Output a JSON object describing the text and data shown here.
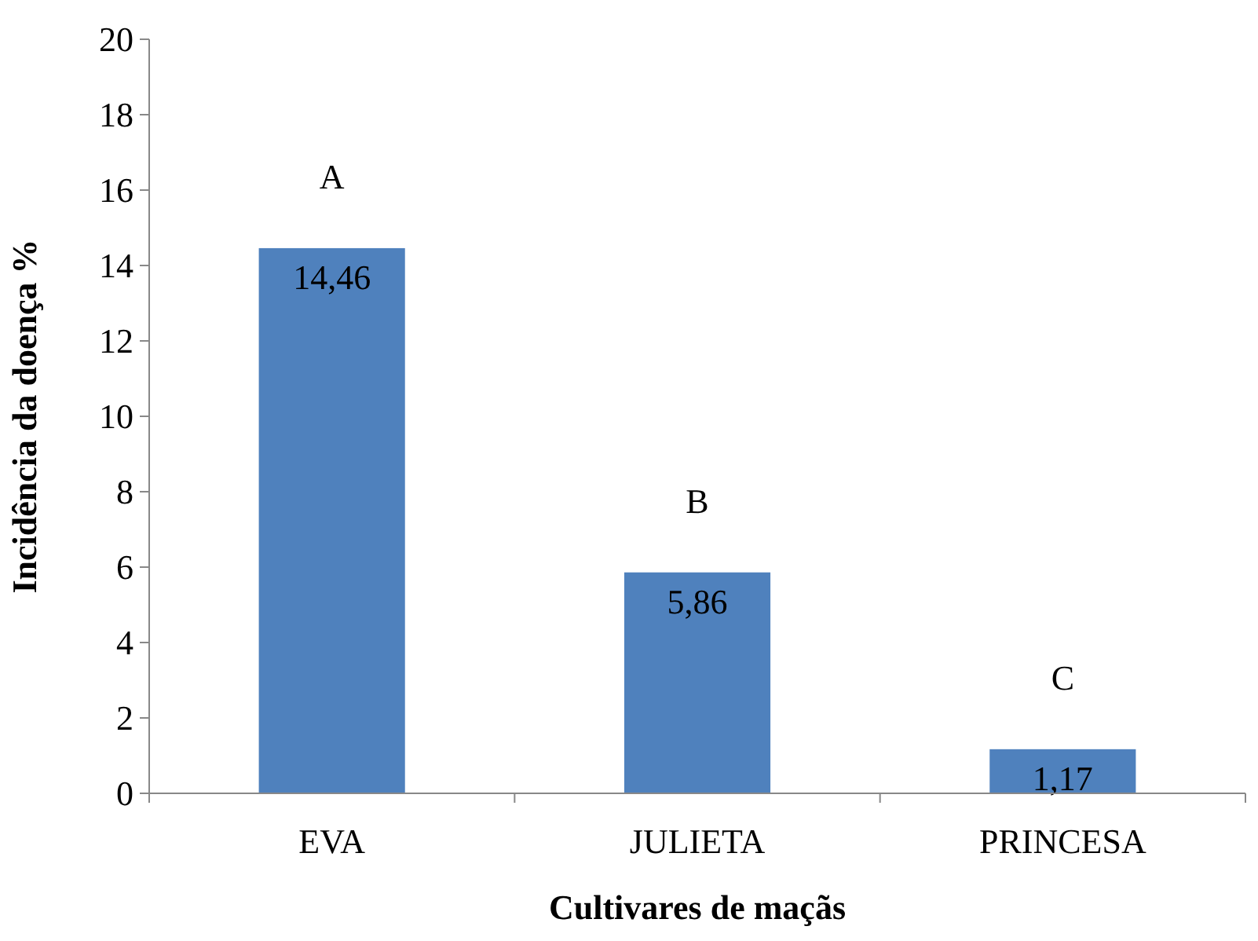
{
  "chart_data": {
    "type": "bar",
    "xlabel": "Cultivares de maçãs",
    "ylabel": "Incidência da doença %",
    "categories": [
      "EVA",
      "JULIETA",
      "PRINCESA"
    ],
    "values": [
      14.46,
      5.86,
      1.17
    ],
    "value_labels": [
      "14,46",
      "5,86",
      "1,17"
    ],
    "color": "#4f81bd",
    "ylim": [
      0,
      20
    ],
    "yticks": [
      0,
      2,
      4,
      6,
      8,
      10,
      12,
      14,
      16,
      18,
      20
    ],
    "grid": false,
    "annotations": [
      "A",
      "B",
      "C"
    ]
  }
}
